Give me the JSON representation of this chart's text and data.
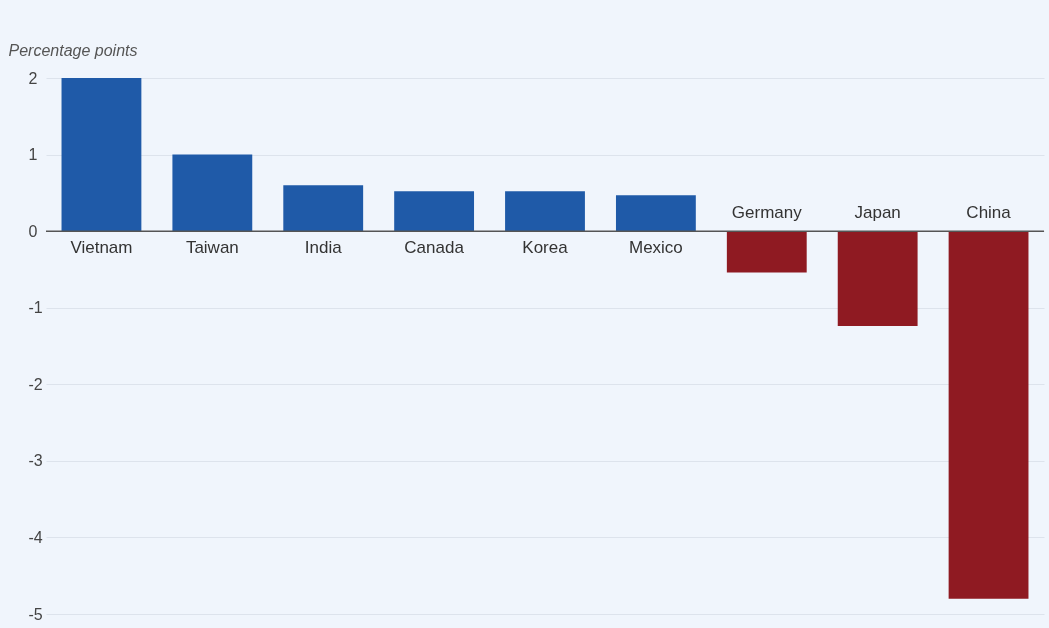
{
  "chart_data": {
    "type": "bar",
    "ylabel": "Percentage points",
    "categories": [
      "Vietnam",
      "Taiwan",
      "India",
      "Canada",
      "Korea",
      "Mexico",
      "Germany",
      "Japan",
      "China"
    ],
    "values": [
      2.0,
      1.0,
      0.6,
      0.52,
      0.52,
      0.47,
      -0.54,
      -1.24,
      -4.8
    ],
    "colors": [
      "#1f5aa8",
      "#1f5aa8",
      "#1f5aa8",
      "#1f5aa8",
      "#1f5aa8",
      "#1f5aa8",
      "#8f1a22",
      "#8f1a22",
      "#8f1a22"
    ],
    "ylim": [
      -5,
      2
    ],
    "yticks": [
      -5,
      -4,
      -3,
      -2,
      -1,
      0,
      1,
      2
    ],
    "grid": "y"
  }
}
